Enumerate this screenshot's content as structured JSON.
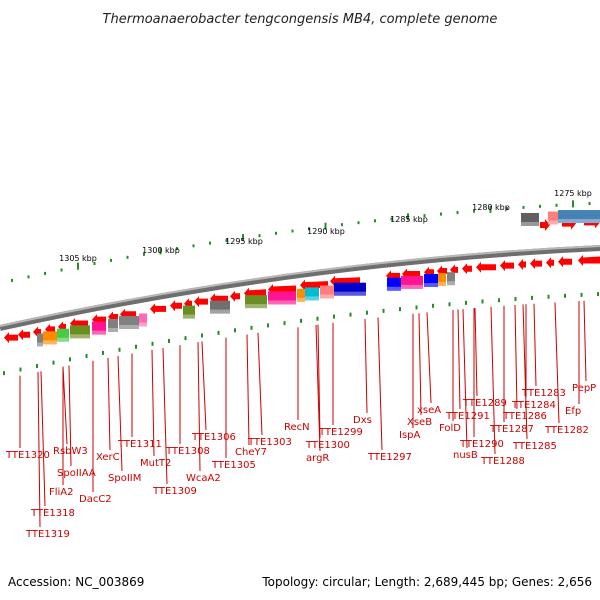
{
  "title": "Thermoanaerobacter tengcongensis MB4, complete genome",
  "footer": {
    "accession": "Accession: NC_003869",
    "stats": "Topology: circular; Length: 2,689,445 bp; Genes: 2,656"
  },
  "scale_labels": [
    "1305 kbp",
    "1300 kbp",
    "1295 kbp",
    "1290 kbp",
    "1285 kbp",
    "1280 kbp",
    "1275 kbp"
  ],
  "gene_labels": [
    "TTE1320",
    "TTE1319",
    "TTE1318",
    "FliA2",
    "SpoIIAA",
    "RsbW3",
    "DacC2",
    "XerC",
    "SpoIIM",
    "TTE1311",
    "MutT2",
    "TTE1309",
    "TTE1308",
    "WcaA2",
    "TTE1306",
    "TTE1305",
    "CheY7",
    "TTE1303",
    "RecN",
    "TTE1300",
    "argR",
    "TTE1299",
    "Dxs",
    "TTE1297",
    "IspA",
    "XseB",
    "xseA",
    "FolD",
    "TTE1291",
    "nusB",
    "TTE1290",
    "TTE1289",
    "TTE1288",
    "TTE1287",
    "TTE1286",
    "TTE1285",
    "TTE1284",
    "TTE1283",
    "TTE1282",
    "Efp",
    "PepP"
  ],
  "colors": {
    "forward_strand": "#ff0000",
    "backbone": "#8a8a8a",
    "label": "#cc0000",
    "tick": "#2a8a2a"
  }
}
